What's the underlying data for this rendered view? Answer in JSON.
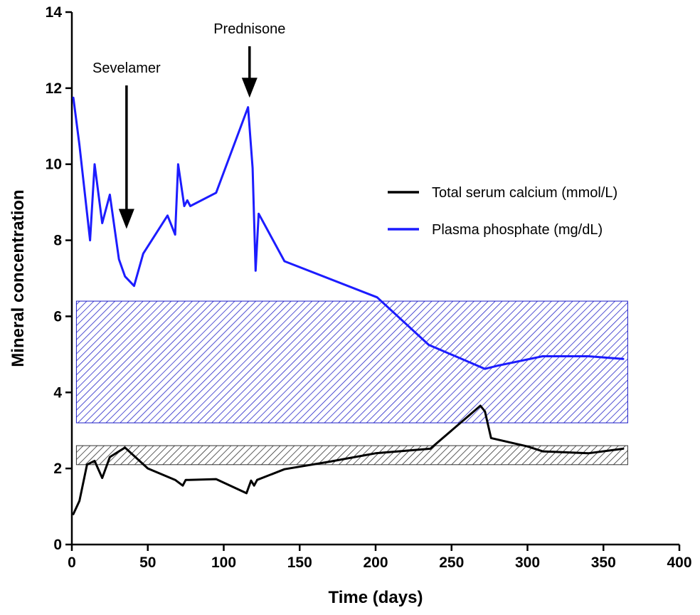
{
  "chart_data": {
    "type": "line",
    "title": "",
    "xlabel": "Time (days)",
    "ylabel": "Mineral concentration",
    "xlim": [
      0,
      400
    ],
    "ylim": [
      0,
      14
    ],
    "xticks": [
      0,
      50,
      100,
      150,
      200,
      250,
      300,
      350,
      400
    ],
    "yticks": [
      0,
      2,
      4,
      6,
      8,
      10,
      12,
      14
    ],
    "grid": false,
    "legend_position": "right",
    "series": [
      {
        "name": "Total serum calcium (mmol/L)",
        "color": "#000000",
        "x": [
          1,
          5,
          10,
          15,
          20,
          25,
          35,
          50,
          68,
          73,
          75,
          77,
          95,
          115,
          118,
          120,
          122,
          140,
          170,
          200,
          236,
          269,
          272,
          276,
          300,
          310,
          340,
          363
        ],
        "y": [
          0.8,
          1.15,
          2.1,
          2.2,
          1.75,
          2.3,
          2.55,
          2.0,
          1.7,
          1.55,
          1.7,
          1.7,
          1.72,
          1.35,
          1.68,
          1.55,
          1.7,
          1.98,
          2.18,
          2.4,
          2.52,
          3.65,
          3.5,
          2.8,
          2.58,
          2.45,
          2.4,
          2.52
        ]
      },
      {
        "name": "Plasma phosphate (mg/dL)",
        "color": "#1c1cff",
        "x": [
          1,
          5,
          12,
          15,
          20,
          25,
          31,
          35,
          41,
          47,
          63,
          68,
          70,
          74,
          76,
          78,
          95,
          116,
          119,
          121,
          123,
          140,
          201,
          235,
          272,
          280,
          310,
          340,
          363
        ],
        "y": [
          11.75,
          10.5,
          8.0,
          10.0,
          8.45,
          9.2,
          7.5,
          7.05,
          6.8,
          7.65,
          8.65,
          8.15,
          10.0,
          8.9,
          9.05,
          8.9,
          9.25,
          11.5,
          9.9,
          7.2,
          8.7,
          7.45,
          6.5,
          5.25,
          4.62,
          4.7,
          4.95,
          4.95,
          4.88
        ]
      }
    ],
    "reference_bands": [
      {
        "name": "phosphate-reference-range",
        "y0": 3.2,
        "y1": 6.4,
        "x0": 3,
        "x1": 366,
        "color": "#1c1cc8"
      },
      {
        "name": "calcium-reference-range",
        "y0": 2.1,
        "y1": 2.6,
        "x0": 3,
        "x1": 366,
        "color": "#333333"
      }
    ],
    "annotations": [
      {
        "text": "Sevelamer",
        "x": 36,
        "y_tip": 8.3
      },
      {
        "text": "Prednisone",
        "x": 117,
        "y_tip": 11.75
      }
    ]
  }
}
